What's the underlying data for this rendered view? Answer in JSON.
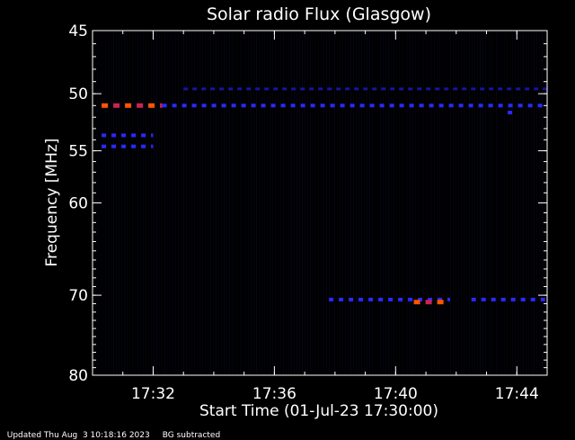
{
  "chart_data": {
    "type": "heatmap",
    "title": "Solar radio Flux (Glasgow)",
    "xlabel": "Start Time (01-Jul-23 17:30:00)",
    "ylabel": "Frequency [MHz]",
    "x_range_minutes": [
      0,
      15
    ],
    "y_range_mhz": [
      45,
      80
    ],
    "y_scale": "log",
    "x_ticks": [
      {
        "label": "17:32",
        "minutes": 2
      },
      {
        "label": "17:36",
        "minutes": 6
      },
      {
        "label": "17:40",
        "minutes": 10
      },
      {
        "label": "17:44",
        "minutes": 14
      }
    ],
    "y_ticks": [
      45,
      50,
      55,
      60,
      70,
      80
    ],
    "background_color": "#000000",
    "noise_color": "#0a0a30",
    "colormap": [
      "#0a0a30",
      "#1515a0",
      "#2a2aff",
      "#cc2255",
      "#ff5500"
    ],
    "features": [
      {
        "freq_mhz": 51.0,
        "minutes": [
          0.3,
          2.3
        ],
        "intensity": "high"
      },
      {
        "freq_mhz": 51.0,
        "minutes": [
          2.3,
          15
        ],
        "intensity": "medium"
      },
      {
        "freq_mhz": 49.6,
        "minutes": [
          3.0,
          15
        ],
        "intensity": "low"
      },
      {
        "freq_mhz": 53.6,
        "minutes": [
          0.3,
          2.0
        ],
        "intensity": "medium"
      },
      {
        "freq_mhz": 54.6,
        "minutes": [
          0.3,
          2.0
        ],
        "intensity": "medium"
      },
      {
        "freq_mhz": 51.6,
        "minutes": [
          13.7,
          14.0
        ],
        "intensity": "medium"
      },
      {
        "freq_mhz": 70.5,
        "minutes": [
          7.8,
          11.8
        ],
        "intensity": "medium"
      },
      {
        "freq_mhz": 70.8,
        "minutes": [
          10.6,
          11.6
        ],
        "intensity": "high"
      },
      {
        "freq_mhz": 70.5,
        "minutes": [
          12.5,
          15
        ],
        "intensity": "medium"
      }
    ]
  },
  "footer": {
    "updated": "Updated Thu Aug  3 10:18:16 2023",
    "note": "BG subtracted"
  }
}
